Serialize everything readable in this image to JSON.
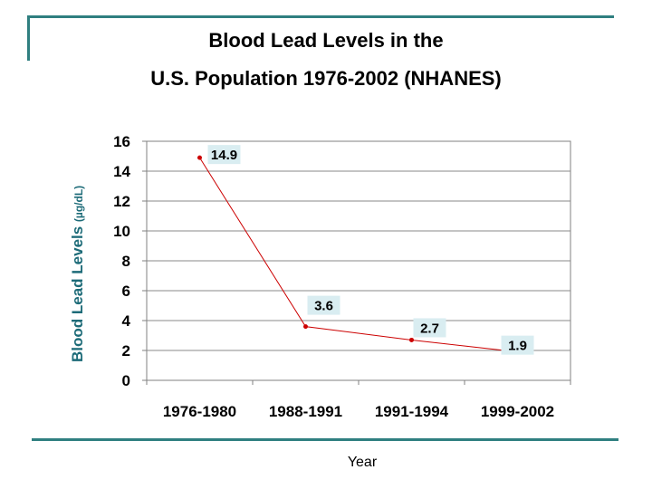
{
  "title_line1": "Blood Lead Levels in the",
  "title_line2": "U.S. Population 1976-2002 (NHANES)",
  "chart_data": {
    "type": "line",
    "categories": [
      "1976-1980",
      "1988-1991",
      "1991-1994",
      "1999-2002"
    ],
    "series": [
      {
        "values": [
          14.9,
          3.6,
          2.7,
          1.9
        ]
      }
    ],
    "data_labels": [
      "14.9",
      "3.6",
      "2.7",
      "1.9"
    ],
    "ylabel": "Blood Lead Levels",
    "ylabel_unit": "(µg/dL)",
    "xlabel": "Year",
    "ylim": [
      0,
      16
    ],
    "yticks": [
      0,
      2,
      4,
      6,
      8,
      10,
      12,
      14,
      16
    ],
    "grid": true,
    "legend": "none",
    "colors": {
      "line": "#cc0000",
      "axis_text": "#000000",
      "ylabel": "#1d6b78",
      "label_bg": "#d9edf1",
      "frame": "#2f7f80"
    }
  }
}
